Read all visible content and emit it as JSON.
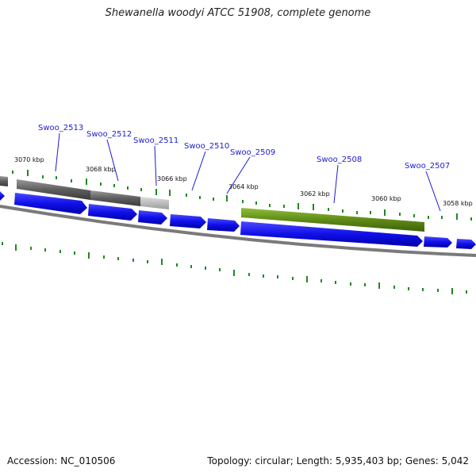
{
  "title": "Shewanella woodyi ATCC 51908, complete genome",
  "footer": {
    "accession": "Accession: NC_010506",
    "summary": "Topology: circular; Length: 5,935,403 bp; Genes: 5,042"
  },
  "ticks": [
    "3070 kbp",
    "3068 kbp",
    "3066 kbp",
    "3064 kbp",
    "3062 kbp",
    "3060 kbp",
    "3058 kbp"
  ],
  "genes": [
    "Swoo_2513",
    "Swoo_2512",
    "Swoo_2511",
    "Swoo_2510",
    "Swoo_2509",
    "Swoo_2508",
    "Swoo_2507"
  ],
  "colors": {
    "cds": "#1010e8",
    "backbone": "#7a7a7a",
    "tick": "#1f8a1f",
    "gc_high": "#6b9a1e",
    "gc_mid": "#6e6e6e",
    "gc_light": "#b4b4b4",
    "label": "#1a1ad6"
  }
}
